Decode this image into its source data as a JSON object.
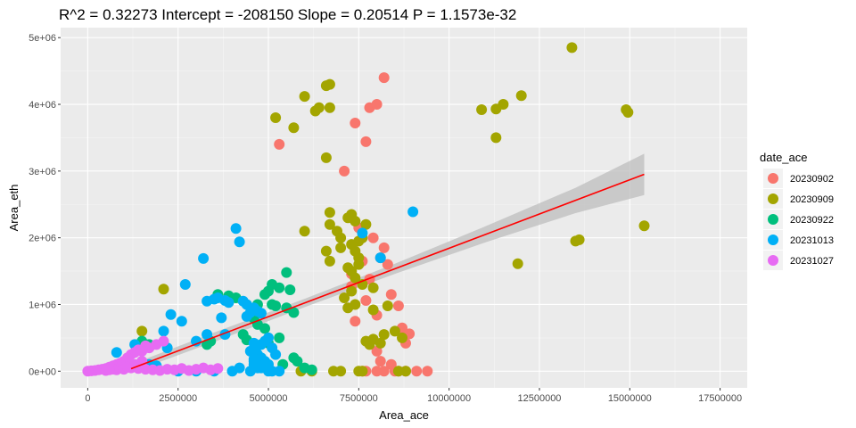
{
  "chart_data": {
    "type": "scatter",
    "title": "R^2 =  0.32273 Intercept = -208150  Slope = 0.20514  P = 1.1573e-32",
    "xlabel": "Area_ace",
    "ylabel": "Area_eth",
    "xlim": [
      -750000,
      18250000
    ],
    "ylim": [
      -250000,
      5150000
    ],
    "x_ticks": [
      0,
      2500000,
      5000000,
      7500000,
      10000000,
      12500000,
      15000000,
      17500000
    ],
    "x_tick_labels": [
      "0",
      "2500000",
      "5000000",
      "7500000",
      "10000000",
      "12500000",
      "15000000",
      "17500000"
    ],
    "y_ticks": [
      0,
      1000000,
      2000000,
      3000000,
      4000000,
      5000000
    ],
    "y_tick_labels": [
      "0e+00",
      "1e+06",
      "2e+06",
      "3e+06",
      "4e+06",
      "5e+06"
    ],
    "grid": true,
    "legend": {
      "title": "date_ace",
      "position": "right"
    },
    "series": [
      {
        "name": "20230902",
        "color": "#F8766D",
        "x": [
          5300000,
          8200000,
          7800000,
          8000000,
          7400000,
          7700000,
          7100000,
          7500000,
          7900000,
          8100000,
          7300000,
          8200000,
          8300000,
          7600000,
          7300000,
          7700000,
          7800000,
          8400000,
          8600000,
          8000000,
          7400000,
          8700000,
          8900000,
          8800000,
          8000000,
          8100000,
          8400000,
          7600000,
          9100000,
          8600000,
          8800000,
          8500000,
          7700000,
          8200000,
          8000000,
          9400000
        ],
        "y": [
          3400000,
          4400000,
          3950000,
          4000000,
          3720000,
          3440000,
          3000000,
          2150000,
          2000000,
          1700000,
          1270000,
          1850000,
          1600000,
          1650000,
          1460000,
          1060000,
          1380000,
          1150000,
          980000,
          840000,
          750000,
          650000,
          560000,
          420000,
          300000,
          150000,
          100000,
          0,
          0,
          0,
          0,
          0,
          0,
          0,
          0,
          0
        ]
      },
      {
        "name": "20230909",
        "color": "#A3A500",
        "x": [
          13400000,
          6700000,
          6600000,
          6000000,
          5200000,
          6300000,
          6400000,
          6700000,
          5700000,
          6600000,
          11500000,
          11300000,
          10900000,
          12000000,
          14900000,
          14950000,
          11300000,
          6700000,
          7300000,
          15400000,
          13600000,
          13500000,
          11900000,
          6700000,
          6900000,
          7000000,
          7200000,
          6600000,
          7400000,
          7700000,
          7600000,
          7500000,
          7000000,
          6000000,
          7300000,
          7400000,
          7500000,
          6700000,
          7200000,
          7500000,
          7300000,
          7400000,
          7600000,
          7900000,
          7300000,
          7100000,
          7400000,
          7900000,
          8300000,
          8700000,
          7200000,
          2100000,
          1500000,
          7700000,
          7900000,
          8100000,
          8500000,
          8200000,
          7800000,
          6200000,
          7000000,
          7500000,
          7600000,
          5900000,
          6800000,
          8600000,
          8800000
        ],
        "y": [
          4850000,
          4300000,
          4280000,
          4120000,
          3800000,
          3900000,
          3950000,
          3950000,
          3650000,
          3200000,
          4000000,
          3930000,
          3920000,
          4130000,
          3920000,
          3880000,
          3500000,
          2380000,
          2350000,
          2180000,
          1970000,
          1950000,
          1610000,
          2200000,
          2100000,
          2000000,
          2300000,
          1800000,
          2250000,
          2200000,
          2000000,
          1950000,
          1850000,
          2100000,
          1900000,
          1800000,
          1700000,
          1650000,
          1550000,
          1600000,
          1500000,
          1400000,
          1300000,
          1250000,
          1200000,
          1100000,
          1000000,
          920000,
          980000,
          500000,
          950000,
          1230000,
          600000,
          450000,
          480000,
          420000,
          600000,
          550000,
          400000,
          0,
          0,
          0,
          0,
          0,
          0,
          0,
          0
        ]
      },
      {
        "name": "20230922",
        "color": "#00BF7D",
        "x": [
          3600000,
          3900000,
          4100000,
          4700000,
          4900000,
          5100000,
          5300000,
          5500000,
          5000000,
          5100000,
          5600000,
          5700000,
          4500000,
          4600000,
          4700000,
          5200000,
          5500000,
          4900000,
          5300000,
          5000000,
          4300000,
          4400000,
          3400000,
          3300000,
          4600000,
          5700000,
          5800000,
          6000000,
          6200000,
          5000000,
          5400000,
          1500000,
          1700000
        ],
        "y": [
          1150000,
          1130000,
          1100000,
          1000000,
          1150000,
          1300000,
          1250000,
          1480000,
          1200000,
          1000000,
          1220000,
          880000,
          850000,
          790000,
          700000,
          980000,
          950000,
          640000,
          500000,
          420000,
          550000,
          470000,
          450000,
          400000,
          300000,
          200000,
          150000,
          50000,
          20000,
          50000,
          100000,
          450000,
          400000
        ],
        "count_note": ""
      },
      {
        "name": "20231013",
        "color": "#00B0F6",
        "x": [
          4100000,
          4200000,
          9000000,
          3200000,
          2700000,
          3300000,
          3600000,
          3800000,
          3900000,
          3500000,
          4300000,
          4400000,
          2300000,
          2100000,
          2600000,
          3700000,
          4600000,
          4700000,
          4800000,
          4500000,
          4400000,
          5000000,
          4900000,
          4800000,
          4700000,
          5100000,
          4600000,
          4500000,
          4700000,
          4800000,
          4600000,
          4900000,
          5200000,
          5000000,
          3300000,
          3800000,
          3000000,
          2200000,
          1300000,
          800000,
          1700000,
          1900000,
          4600000,
          4700000,
          4900000,
          5000000,
          4500000,
          4800000,
          4700000,
          4600000,
          4200000,
          4000000,
          2500000,
          3000000,
          3500000,
          5100000,
          5300000,
          7600000,
          8100000
        ],
        "y": [
          2140000,
          1940000,
          2390000,
          1690000,
          1300000,
          1050000,
          1100000,
          1060000,
          1030000,
          1080000,
          1050000,
          1000000,
          850000,
          600000,
          750000,
          800000,
          950000,
          900000,
          870000,
          880000,
          820000,
          500000,
          450000,
          400000,
          380000,
          350000,
          420000,
          300000,
          250000,
          200000,
          180000,
          150000,
          250000,
          100000,
          550000,
          550000,
          450000,
          350000,
          400000,
          280000,
          100000,
          80000,
          100000,
          50000,
          100000,
          0,
          0,
          50000,
          80000,
          150000,
          50000,
          0,
          0,
          0,
          0,
          0,
          0,
          2070000,
          1700000
        ]
      },
      {
        "name": "20231027",
        "color": "#E76BF3",
        "x": [
          2100000,
          1900000,
          1700000,
          1600000,
          1500000,
          1400000,
          1300000,
          1200000,
          1100000,
          1000000,
          900000,
          800000,
          700000,
          600000,
          500000,
          400000,
          300000,
          200000,
          100000,
          0,
          1200000,
          1400000,
          1600000,
          1800000,
          2000000,
          2200000,
          2400000,
          2600000,
          2800000,
          3000000,
          3200000,
          3400000,
          3600000,
          800000,
          900000,
          1000000,
          1100000,
          1300000,
          1500000,
          700000,
          600000,
          500000
        ],
        "y": [
          450000,
          400000,
          350000,
          380000,
          300000,
          320000,
          280000,
          250000,
          200000,
          150000,
          120000,
          100000,
          80000,
          60000,
          40000,
          30000,
          20000,
          10000,
          5000,
          0,
          50000,
          40000,
          30000,
          20000,
          10000,
          30000,
          20000,
          40000,
          10000,
          30000,
          50000,
          20000,
          40000,
          20000,
          50000,
          30000,
          60000,
          100000,
          150000,
          30000,
          20000,
          10000
        ]
      }
    ],
    "regression": {
      "color": "#FF0000",
      "band_color": "#BEBEBE",
      "x": [
        1200000,
        3500000,
        6000000,
        8500000,
        11000000,
        13500000,
        15400000
      ],
      "y": [
        38000,
        510000,
        1022000,
        1536000,
        2048000,
        2561000,
        2951000
      ],
      "lower": [
        -20000,
        440000,
        960000,
        1460000,
        1930000,
        2370000,
        2640000
      ],
      "upper": [
        100000,
        580000,
        1085000,
        1610000,
        2170000,
        2750000,
        3260000
      ]
    }
  }
}
